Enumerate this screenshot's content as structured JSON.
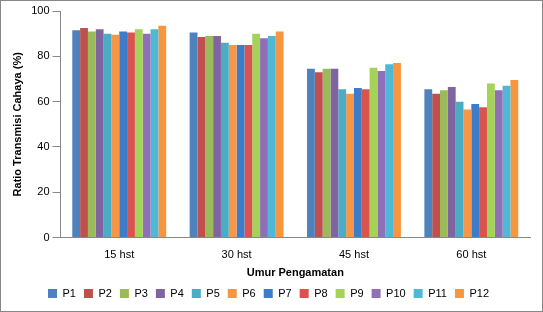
{
  "chart_data": {
    "type": "bar",
    "x_label": "Umur Pengamatan",
    "y_label": "Ratio Transmisi Cahaya (%)",
    "categories": [
      "15 hst",
      "30 hst",
      "45 hst",
      "60 hst"
    ],
    "series": [
      {
        "name": "P1",
        "color": "#4f81bd",
        "values": [
          91.5,
          90.5,
          74.5,
          65.5
        ]
      },
      {
        "name": "P2",
        "color": "#c0504d",
        "values": [
          92.5,
          88.5,
          73,
          63.5
        ]
      },
      {
        "name": "P3",
        "color": "#9bbb59",
        "values": [
          91,
          89,
          74.5,
          65
        ]
      },
      {
        "name": "P4",
        "color": "#8064a2",
        "values": [
          92,
          89,
          74.5,
          66.5
        ]
      },
      {
        "name": "P5",
        "color": "#4bacc6",
        "values": [
          90,
          86,
          65.5,
          60
        ]
      },
      {
        "name": "P6",
        "color": "#f79646",
        "values": [
          89.5,
          85,
          63.5,
          56.5
        ]
      },
      {
        "name": "P7",
        "color": "#3c7cc8",
        "values": [
          91,
          85,
          66,
          59
        ]
      },
      {
        "name": "P8",
        "color": "#d9534f",
        "values": [
          90.5,
          85,
          65.5,
          57.5
        ]
      },
      {
        "name": "P9",
        "color": "#a5d35a",
        "values": [
          92,
          90,
          75,
          68
        ]
      },
      {
        "name": "P10",
        "color": "#8e6fb8",
        "values": [
          90,
          88,
          73.5,
          65
        ]
      },
      {
        "name": "P11",
        "color": "#4fb8d6",
        "values": [
          92,
          89,
          76.5,
          67
        ]
      },
      {
        "name": "P12",
        "color": "#f7963e",
        "values": [
          93.5,
          91,
          77,
          69.5
        ]
      }
    ],
    "ylim": [
      0,
      100
    ],
    "yticks": [
      0,
      20,
      40,
      60,
      80,
      100
    ],
    "grid": false,
    "legend": "bottom"
  }
}
